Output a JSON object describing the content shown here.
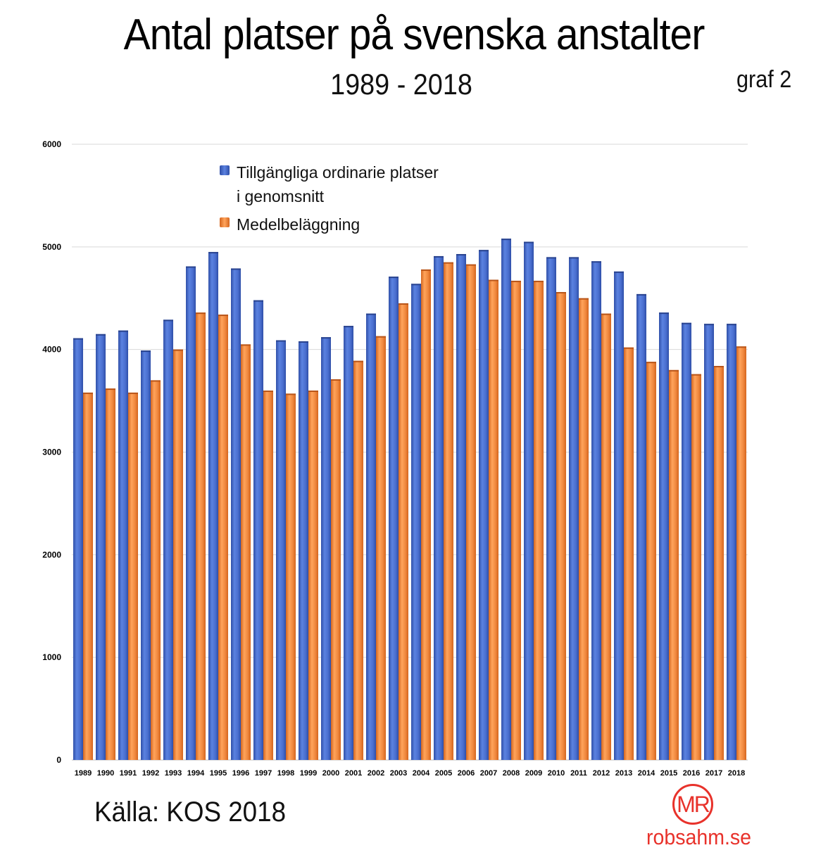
{
  "header": {
    "title": "Antal platser på svenska anstalter",
    "subtitle": "1989 - 2018",
    "graf_label": "graf 2"
  },
  "footer": {
    "source": "Källa: KOS 2018",
    "logo_text": "MR",
    "site": "robsahm.se"
  },
  "colors": {
    "series1": "#4a6fd0",
    "series1_dark": "#2f4fa8",
    "series2": "#f0883e",
    "series2_dark": "#d4661f",
    "gridline": "#d9d9d9",
    "brand": "#e8322b"
  },
  "chart_data": {
    "type": "bar",
    "title": "Antal platser på svenska anstalter",
    "subtitle": "1989 - 2018",
    "xlabel": "",
    "ylabel": "",
    "ylim": [
      0,
      6000
    ],
    "yticks": [
      0,
      1000,
      2000,
      3000,
      4000,
      5000,
      6000
    ],
    "grid": true,
    "legend_position": "top-left",
    "categories": [
      "1989",
      "1990",
      "1991",
      "1992",
      "1993",
      "1994",
      "1995",
      "1996",
      "1997",
      "1998",
      "1999",
      "2000",
      "2001",
      "2002",
      "2003",
      "2004",
      "2005",
      "2006",
      "2007",
      "2008",
      "2009",
      "2010",
      "2011",
      "2012",
      "2013",
      "2014",
      "2015",
      "2016",
      "2017",
      "2018"
    ],
    "series": [
      {
        "name": "Tillgängliga ordinarie platser i genomsnitt",
        "color": "#4a6fd0",
        "values": [
          4110,
          4150,
          4185,
          3990,
          4290,
          4810,
          4950,
          4790,
          4480,
          4090,
          4080,
          4120,
          4230,
          4350,
          4710,
          4640,
          4910,
          4930,
          4970,
          5080,
          5050,
          4900,
          4900,
          4860,
          4760,
          4540,
          4360,
          4260,
          4250,
          4250
        ]
      },
      {
        "name": "Medelbeläggning",
        "color": "#f0883e",
        "values": [
          3580,
          3620,
          3580,
          3700,
          4000,
          4360,
          4340,
          4050,
          3600,
          3570,
          3600,
          3710,
          3890,
          4130,
          4450,
          4780,
          4850,
          4830,
          4680,
          4670,
          4670,
          4560,
          4500,
          4350,
          4020,
          3880,
          3800,
          3760,
          3840,
          4030
        ]
      }
    ]
  }
}
